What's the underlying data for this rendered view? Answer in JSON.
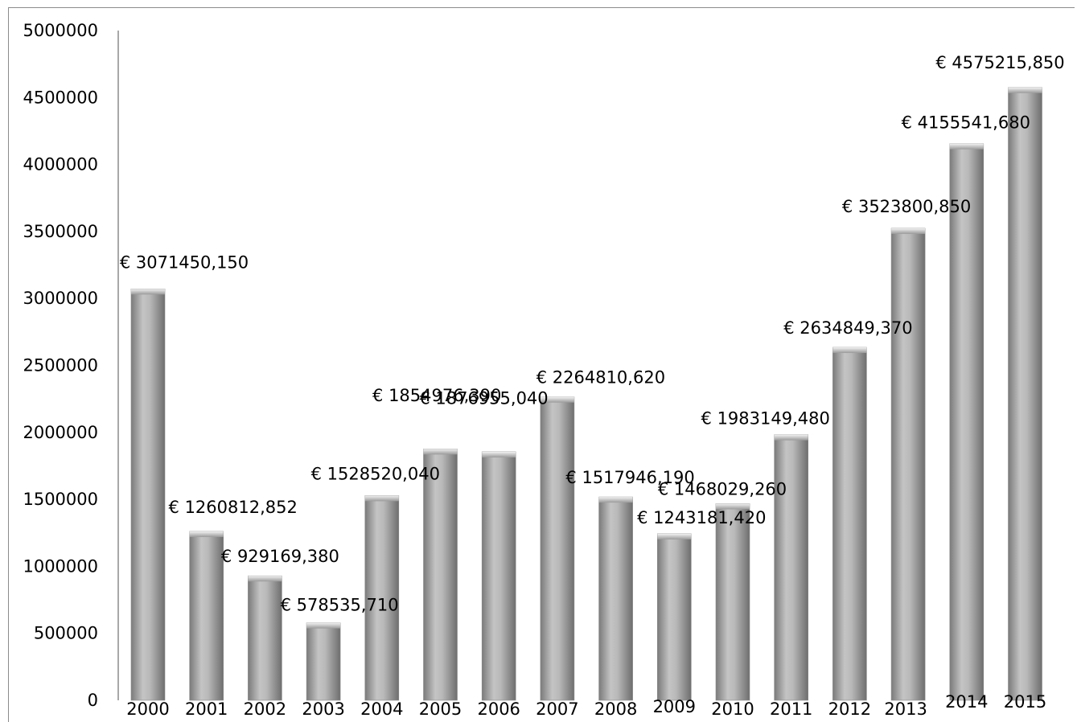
{
  "chart_data": {
    "type": "bar",
    "categories": [
      "2000",
      "2001",
      "2002",
      "2003",
      "2004",
      "2005",
      "2006",
      "2007",
      "2008",
      "2009",
      "2010",
      "2011",
      "2012",
      "2013",
      "2014",
      "2015"
    ],
    "values": [
      3071450.15,
      1260812.852,
      929169.38,
      578535.71,
      1528520.04,
      1876955.04,
      1854976.39,
      2264810.62,
      1517946.19,
      1243181.42,
      1468029.26,
      1983149.48,
      2634849.37,
      3523800.85,
      4155541.68,
      4575215.85
    ],
    "data_labels": [
      "€ 3071450,150",
      "€ 1260812,852",
      "€ 929169,380",
      "€ 578535,710",
      "€ 1528520,040",
      "€ 1876955,040",
      "€ 1854976,390",
      "€ 2264810,620",
      "€ 1517946,190",
      "€ 1243181,420",
      "€ 1468029,260",
      "€ 1983149,480",
      "€ 2634849,370",
      "€ 3523800,850",
      "€ 4155541,680",
      "€ 4575215,850"
    ],
    "title": "",
    "xlabel": "",
    "ylabel": "",
    "ylim": [
      0,
      5000000
    ],
    "yticks": [
      "0",
      "500000",
      "1000000",
      "1500000",
      "2000000",
      "2500000",
      "3000000",
      "3500000",
      "4000000",
      "4500000",
      "5000000"
    ],
    "grid": false,
    "legend": "none",
    "bar_color": "#a6a6a6"
  }
}
